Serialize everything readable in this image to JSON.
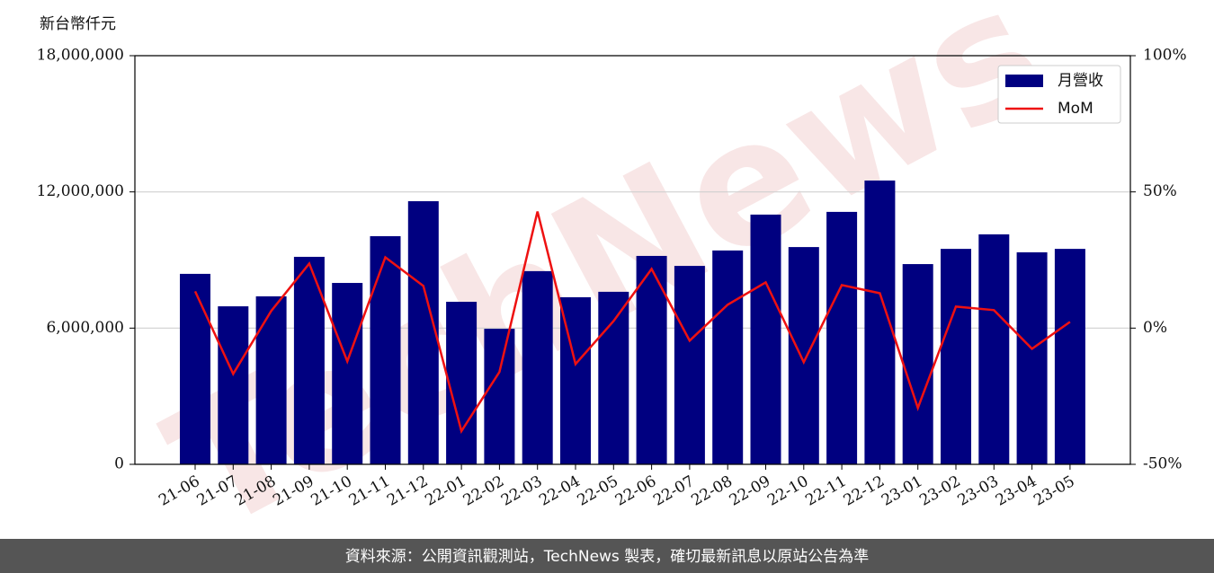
{
  "chart_data": {
    "type": "bar_line",
    "y_unit_label": "新台幣仟元",
    "watermark": "TechNews",
    "footer": "資料來源：公開資訊觀測站，TechNews 製表，確切最新訊息以原站公告為準",
    "categories": [
      "21-06",
      "21-07",
      "21-08",
      "21-09",
      "21-10",
      "21-11",
      "21-12",
      "22-01",
      "22-02",
      "22-03",
      "22-04",
      "22-05",
      "22-06",
      "22-07",
      "22-08",
      "22-09",
      "22-10",
      "22-11",
      "22-12",
      "23-01",
      "23-02",
      "23-03",
      "23-04",
      "23-05"
    ],
    "series": [
      {
        "name": "月營收",
        "color": "#000080",
        "type": "bar",
        "values": [
          8390000,
          6960000,
          7400000,
          9140000,
          7990000,
          10050000,
          11590000,
          7160000,
          5970000,
          8510000,
          7360000,
          7600000,
          9180000,
          8740000,
          9420000,
          11000000,
          9570000,
          11120000,
          12500000,
          8820000,
          9490000,
          10130000,
          9340000,
          9490000
        ]
      },
      {
        "name": "MoM",
        "color": "#ee1111",
        "type": "line",
        "axis": "y2",
        "values": [
          13.5,
          -16.8,
          6.3,
          23.7,
          -12.2,
          26.0,
          15.5,
          -37.8,
          -16.1,
          42.8,
          -13.2,
          2.6,
          21.7,
          -4.6,
          8.6,
          16.8,
          -12.5,
          15.8,
          12.8,
          -29.3,
          7.9,
          6.6,
          -7.6,
          2.3
        ]
      }
    ],
    "ylim": [
      0,
      18000000
    ],
    "yticks": [
      0,
      {
        "value": 6000000,
        "label": "6,000,000"
      },
      {
        "value": 12000000,
        "label": "12,000,000"
      },
      {
        "value": 18000000,
        "label": "18,000,000"
      }
    ],
    "y2lim": [
      -50,
      100
    ],
    "y2ticks": [
      {
        "value": -50,
        "label": "-50%"
      },
      {
        "value": 0,
        "label": "0%"
      },
      {
        "value": 50,
        "label": "50%"
      },
      {
        "value": 100,
        "label": "100%"
      }
    ],
    "grid": true,
    "legend": "upper right"
  }
}
